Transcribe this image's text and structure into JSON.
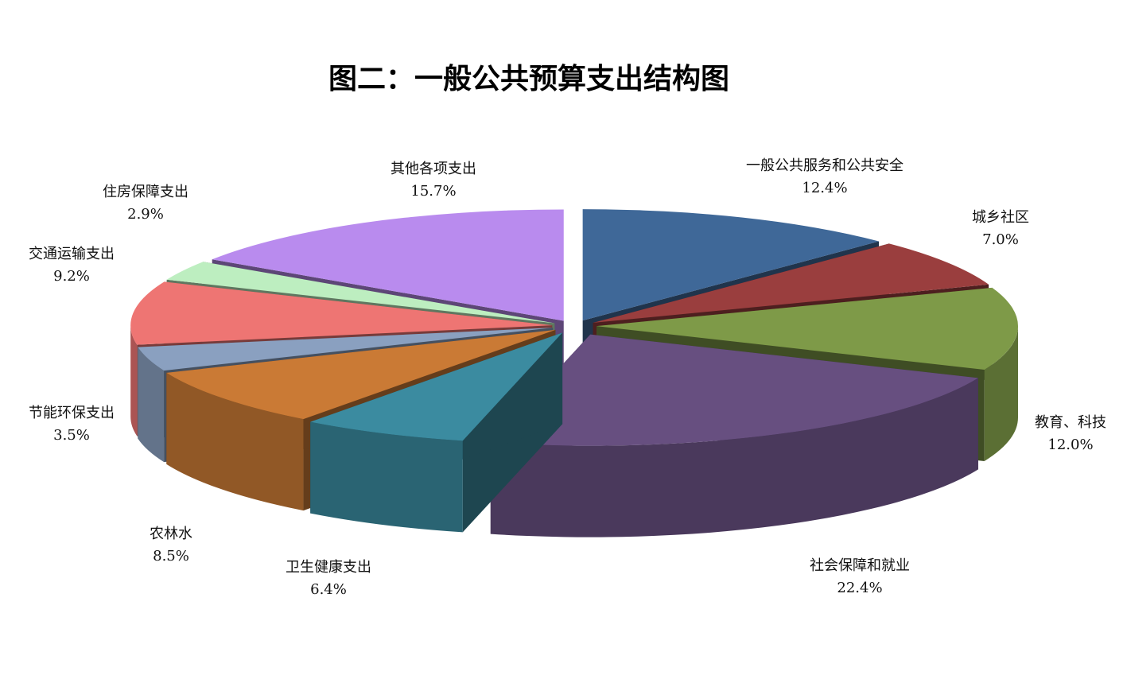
{
  "chart_data": {
    "type": "pie",
    "style": "3d-exploded",
    "title": "图二：一般公共预算支出结构图",
    "slices": [
      {
        "name": "一般公共服务和公共安全",
        "value": 12.4,
        "label": "12.4%",
        "color": "#3F6898"
      },
      {
        "name": "城乡社区",
        "value": 7.0,
        "label": "7.0%",
        "color": "#9A3E3E"
      },
      {
        "name": "教育、科技",
        "value": 12.0,
        "label": "12.0%",
        "color": "#7E9A48"
      },
      {
        "name": "社会保障和就业",
        "value": 22.4,
        "label": "22.4%",
        "color": "#674F80"
      },
      {
        "name": "卫生健康支出",
        "value": 6.4,
        "label": "6.4%",
        "color": "#3B8BA0"
      },
      {
        "name": "农林水",
        "value": 8.5,
        "label": "8.5%",
        "color": "#CA7A35"
      },
      {
        "name": "节能环保支出",
        "value": 3.5,
        "label": "3.5%",
        "color": "#8AA0C0"
      },
      {
        "name": "交通运输支出",
        "value": 9.2,
        "label": "9.2%",
        "color": "#EE7573"
      },
      {
        "name": "住房保障支出",
        "value": 2.9,
        "label": "2.9%",
        "color": "#BDEEC0"
      },
      {
        "name": "其他各项支出",
        "value": 15.7,
        "label": "15.7%",
        "color": "#B98BEE"
      }
    ],
    "legend": "none"
  }
}
